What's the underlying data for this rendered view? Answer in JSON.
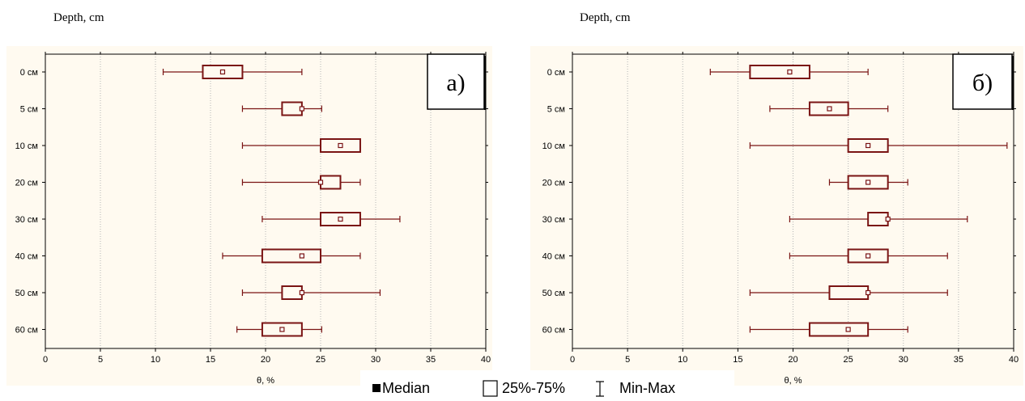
{
  "colors": {
    "panel_bg": "#fffaf0",
    "box": "#7a1414",
    "grid": "#b4b4b4",
    "axis": "#000000"
  },
  "legend": {
    "median": "Median",
    "box": "25%-75%",
    "whisker": "Min-Max"
  },
  "chart_data": [
    {
      "type": "boxplot",
      "orientation": "horizontal",
      "ytitle": "Depth, cm",
      "xlabel": "θ, %",
      "panel_label": "а)",
      "xlim": [
        0,
        40
      ],
      "xticks": [
        0,
        5,
        10,
        15,
        20,
        25,
        30,
        35,
        40
      ],
      "grid": "vertical dotted",
      "categories": [
        "0 см",
        "5 см",
        "10 см",
        "20 см",
        "30 см",
        "40 см",
        "50 см",
        "60 см"
      ],
      "min": [
        10.7,
        17.9,
        17.9,
        17.9,
        19.7,
        16.1,
        17.9,
        17.4
      ],
      "q1": [
        14.3,
        21.5,
        25.0,
        25.0,
        25.0,
        19.7,
        21.5,
        19.7
      ],
      "median": [
        16.1,
        23.3,
        26.8,
        25.0,
        26.8,
        23.3,
        23.3,
        21.5
      ],
      "q3": [
        17.9,
        23.3,
        28.6,
        26.8,
        28.6,
        25.0,
        23.3,
        23.3
      ],
      "max": [
        23.3,
        25.1,
        28.6,
        28.6,
        32.2,
        28.6,
        30.4,
        25.1
      ]
    },
    {
      "type": "boxplot",
      "orientation": "horizontal",
      "ytitle": "Depth, cm",
      "xlabel": "θ, %",
      "panel_label": "б)",
      "xlim": [
        0,
        40
      ],
      "xticks": [
        0,
        5,
        10,
        15,
        20,
        25,
        30,
        35,
        40
      ],
      "grid": "vertical dotted",
      "categories": [
        "0 см",
        "5 см",
        "10 см",
        "20 см",
        "30 см",
        "40 см",
        "50 см",
        "60 см"
      ],
      "min": [
        12.5,
        17.9,
        16.1,
        23.3,
        19.7,
        19.7,
        16.1,
        16.1
      ],
      "q1": [
        16.1,
        21.5,
        25.0,
        25.0,
        26.8,
        25.0,
        23.3,
        21.5
      ],
      "median": [
        19.7,
        23.3,
        26.8,
        26.8,
        28.6,
        26.8,
        26.8,
        25.0
      ],
      "q3": [
        21.5,
        25.0,
        28.6,
        28.6,
        28.6,
        28.6,
        26.8,
        26.8
      ],
      "max": [
        26.8,
        28.6,
        39.4,
        30.4,
        35.8,
        34.0,
        34.0,
        30.4
      ]
    }
  ]
}
